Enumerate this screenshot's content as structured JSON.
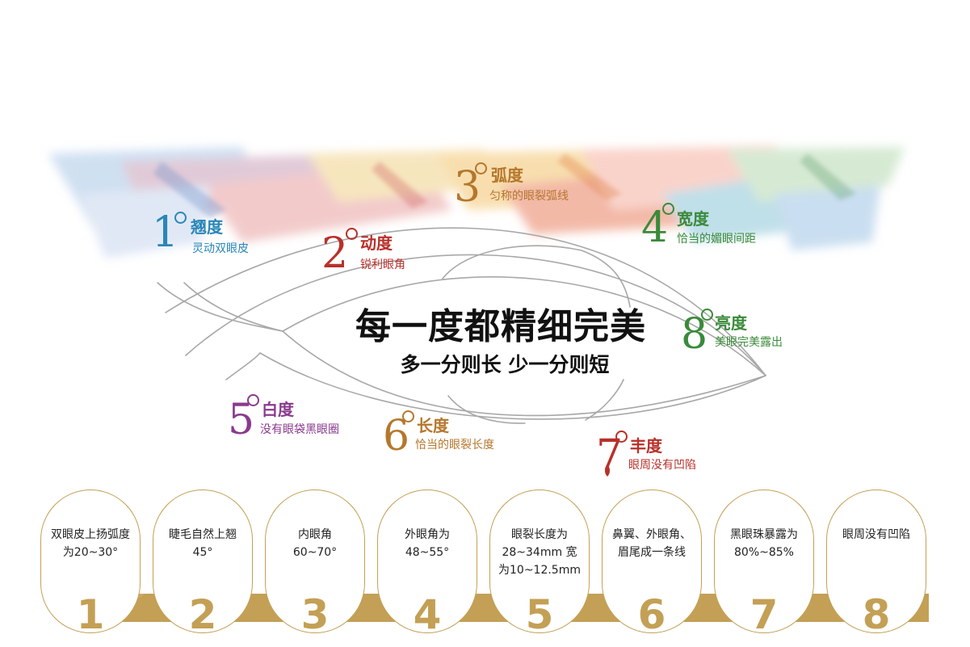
{
  "headline": "每一度都精细完美",
  "subline": "多一分则长 少一分则短",
  "features": [
    {
      "number": "1",
      "title": "翘度",
      "desc": "灵动双眼皮",
      "color": "#2a86b8"
    },
    {
      "number": "2",
      "title": "动度",
      "desc": "锐利眼角",
      "color": "#b8302a"
    },
    {
      "number": "3",
      "title": "弧度",
      "desc": "匀称的眼裂弧线",
      "color": "#b5772c"
    },
    {
      "number": "4",
      "title": "宽度",
      "desc": "恰当的媚眼间距",
      "color": "#3a8a3a"
    },
    {
      "number": "5",
      "title": "白度",
      "desc": "没有眼袋黑眼圈",
      "color": "#8a3a8e"
    },
    {
      "number": "6",
      "title": "长度",
      "desc": "恰当的眼裂长度",
      "color": "#b5772c"
    },
    {
      "number": "7",
      "title": "丰度",
      "desc": "眼周没有凹陷",
      "color": "#b8302a"
    },
    {
      "number": "8",
      "title": "亮度",
      "desc": "美眼完美露出",
      "color": "#3a8a3a"
    }
  ],
  "cards": [
    {
      "line1": "双眼皮上扬弧度",
      "line2": "为20~30°",
      "line3": "",
      "number": "1"
    },
    {
      "line1": "睫毛自然上翘",
      "line2": "45°",
      "line3": "",
      "number": "2"
    },
    {
      "line1": "内眼角",
      "line2": "60~70°",
      "line3": "",
      "number": "3"
    },
    {
      "line1": "外眼角为",
      "line2": "48~55°",
      "line3": "",
      "number": "4"
    },
    {
      "line1": "眼裂长度为",
      "line2": "28~34mm 宽",
      "line3": "为10~12.5mm",
      "number": "5"
    },
    {
      "line1": "鼻翼、外眼角、",
      "line2": "眉尾成一条线",
      "line3": "",
      "number": "6"
    },
    {
      "line1": "黑眼珠暴露为",
      "line2": "80%~85%",
      "line3": "",
      "number": "7"
    },
    {
      "line1": "眼周没有凹陷",
      "line2": "",
      "line3": "",
      "number": "8"
    }
  ],
  "colors": {
    "gold": "#c3a055",
    "ink": "#111111"
  }
}
